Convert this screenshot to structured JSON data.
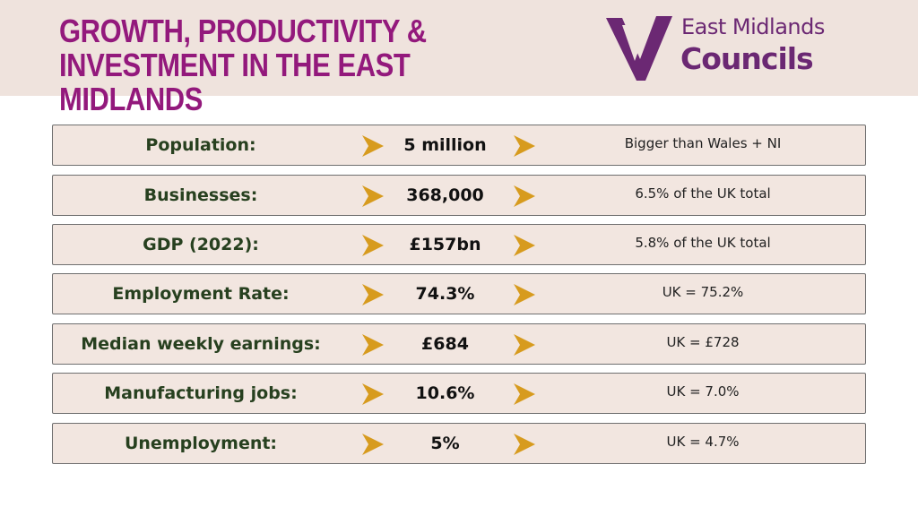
{
  "header": {
    "title": "Growth, Productivity & Investment in the East Midlands",
    "logo_line1": "East Midlands",
    "logo_line2": "Councils"
  },
  "colors": {
    "title": "#93197c",
    "header_bg": "#efe3dd",
    "row_bg": "#f2e6e0",
    "label": "#27401f",
    "arrow": "#d79b1e",
    "logo": "#6b2873"
  },
  "icons": {
    "row_arrow": "chevron-right-icon",
    "logo_mark": "checkmark-logo-icon"
  },
  "rows": [
    {
      "label": "Population:",
      "value": "5 million",
      "compare": "Bigger than Wales + NI"
    },
    {
      "label": "Businesses:",
      "value": "368,000",
      "compare": "6.5% of the UK total"
    },
    {
      "label": "GDP (2022):",
      "value": "£157bn",
      "compare": "5.8% of the UK total"
    },
    {
      "label": "Employment Rate:",
      "value": "74.3%",
      "compare": "UK = 75.2%"
    },
    {
      "label": "Median weekly earnings:",
      "value": "£684",
      "compare": "UK = £728"
    },
    {
      "label": "Manufacturing jobs:",
      "value": "10.6%",
      "compare": "UK = 7.0%"
    },
    {
      "label": "Unemployment:",
      "value": "5%",
      "compare": "UK = 4.7%"
    }
  ]
}
